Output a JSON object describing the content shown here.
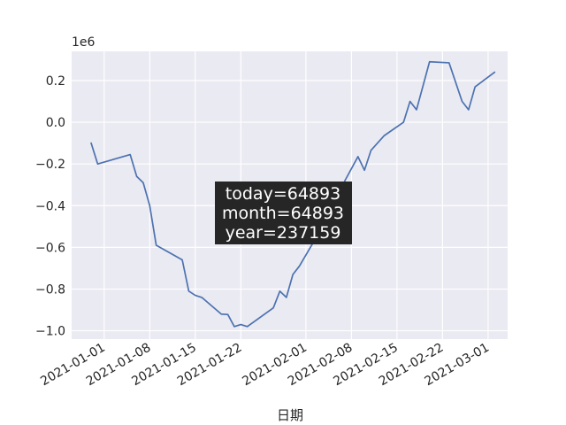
{
  "chart_data": {
    "type": "line",
    "title": "",
    "xlabel": "日期",
    "ylabel": "",
    "y_offset_label": "1e6",
    "grid": true,
    "x_type": "date",
    "x_range": [
      "2020-12-27",
      "2021-03-04"
    ],
    "y_range": [
      -1.04,
      0.34
    ],
    "y_scale_multiplier": 1000000,
    "x_ticks": [
      {
        "date": "2021-01-01",
        "label": "2021-01-01"
      },
      {
        "date": "2021-01-08",
        "label": "2021-01-08"
      },
      {
        "date": "2021-01-15",
        "label": "2021-01-15"
      },
      {
        "date": "2021-01-22",
        "label": "2021-01-22"
      },
      {
        "date": "2021-02-01",
        "label": "2021-02-01"
      },
      {
        "date": "2021-02-08",
        "label": "2021-02-08"
      },
      {
        "date": "2021-02-15",
        "label": "2021-02-15"
      },
      {
        "date": "2021-02-22",
        "label": "2021-02-22"
      },
      {
        "date": "2021-03-01",
        "label": "2021-03-01"
      }
    ],
    "y_ticks": [
      {
        "value": 0.2,
        "label": "0.2"
      },
      {
        "value": 0.0,
        "label": "0.0"
      },
      {
        "value": -0.2,
        "label": "−0.2"
      },
      {
        "value": -0.4,
        "label": "−0.4"
      },
      {
        "value": -0.6,
        "label": "−0.6"
      },
      {
        "value": -0.8,
        "label": "−0.8"
      },
      {
        "value": -1.0,
        "label": "−1.0"
      }
    ],
    "series": [
      {
        "color": "#4c72b0",
        "points": [
          {
            "x": "2020-12-30",
            "y": -0.1
          },
          {
            "x": "2020-12-31",
            "y": -0.2
          },
          {
            "x": "2021-01-05",
            "y": -0.155
          },
          {
            "x": "2021-01-06",
            "y": -0.26
          },
          {
            "x": "2021-01-07",
            "y": -0.29
          },
          {
            "x": "2021-01-08",
            "y": -0.4
          },
          {
            "x": "2021-01-09",
            "y": -0.59
          },
          {
            "x": "2021-01-13",
            "y": -0.66
          },
          {
            "x": "2021-01-14",
            "y": -0.81
          },
          {
            "x": "2021-01-15",
            "y": -0.83
          },
          {
            "x": "2021-01-16",
            "y": -0.84
          },
          {
            "x": "2021-01-19",
            "y": -0.92
          },
          {
            "x": "2021-01-20",
            "y": -0.922
          },
          {
            "x": "2021-01-21",
            "y": -0.98
          },
          {
            "x": "2021-01-22",
            "y": -0.97
          },
          {
            "x": "2021-01-23",
            "y": -0.98
          },
          {
            "x": "2021-01-27",
            "y": -0.89
          },
          {
            "x": "2021-01-28",
            "y": -0.81
          },
          {
            "x": "2021-01-29",
            "y": -0.84
          },
          {
            "x": "2021-01-30",
            "y": -0.73
          },
          {
            "x": "2021-01-31",
            "y": -0.69
          },
          {
            "x": "2021-02-03",
            "y": -0.53
          },
          {
            "x": "2021-02-07",
            "y": -0.28
          },
          {
            "x": "2021-02-09",
            "y": -0.165
          },
          {
            "x": "2021-02-10",
            "y": -0.23
          },
          {
            "x": "2021-02-11",
            "y": -0.135
          },
          {
            "x": "2021-02-13",
            "y": -0.065
          },
          {
            "x": "2021-02-16",
            "y": 0.0
          },
          {
            "x": "2021-02-17",
            "y": 0.1
          },
          {
            "x": "2021-02-18",
            "y": 0.06
          },
          {
            "x": "2021-02-20",
            "y": 0.29
          },
          {
            "x": "2021-02-23",
            "y": 0.285
          },
          {
            "x": "2021-02-25",
            "y": 0.1
          },
          {
            "x": "2021-02-26",
            "y": 0.06
          },
          {
            "x": "2021-02-27",
            "y": 0.17
          },
          {
            "x": "2021-03-02",
            "y": 0.24
          }
        ]
      }
    ],
    "annotation": {
      "lines": [
        "today=64893",
        "month=64893",
        "year=237159"
      ]
    },
    "colors": {
      "plot_background": "#eaeaf2",
      "grid": "#ffffff",
      "line": "#4c72b0",
      "annotation_background": "#262626",
      "annotation_text": "#ffffff",
      "text": "#262626"
    }
  }
}
